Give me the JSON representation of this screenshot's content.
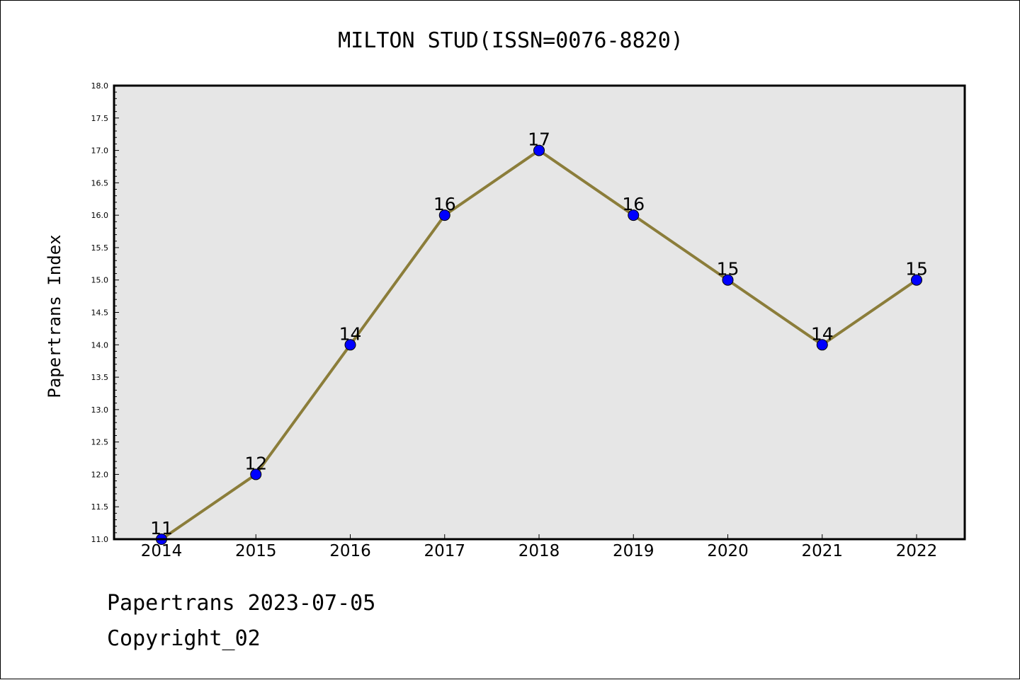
{
  "footer": {
    "line1": "Papertrans 2023-07-05",
    "line2": "Copyright_02"
  },
  "colors": {
    "plot_background": "#e6e6e6",
    "line": "#8b7d3a",
    "marker": "#0000ff",
    "axis": "#000000"
  },
  "chart_data": {
    "type": "line",
    "title": "MILTON STUD(ISSN=0076-8820)",
    "xlabel": "",
    "ylabel": "Papertrans Index",
    "categories": [
      "2014",
      "2015",
      "2016",
      "2017",
      "2018",
      "2019",
      "2020",
      "2021",
      "2022"
    ],
    "series": [
      {
        "values": [
          11,
          12,
          14,
          16,
          17,
          16,
          15,
          14,
          15
        ]
      }
    ],
    "data_labels": [
      "11",
      "12",
      "14",
      "16",
      "17",
      "16",
      "15",
      "14",
      "15"
    ],
    "ylim": [
      11.0,
      18.0
    ],
    "yticks": [
      "11.0",
      "11.5",
      "12.0",
      "12.5",
      "13.0",
      "13.5",
      "14.0",
      "14.5",
      "15.0",
      "15.5",
      "16.0",
      "16.5",
      "17.0",
      "17.5",
      "18.0"
    ],
    "grid": false,
    "legend": "none"
  }
}
